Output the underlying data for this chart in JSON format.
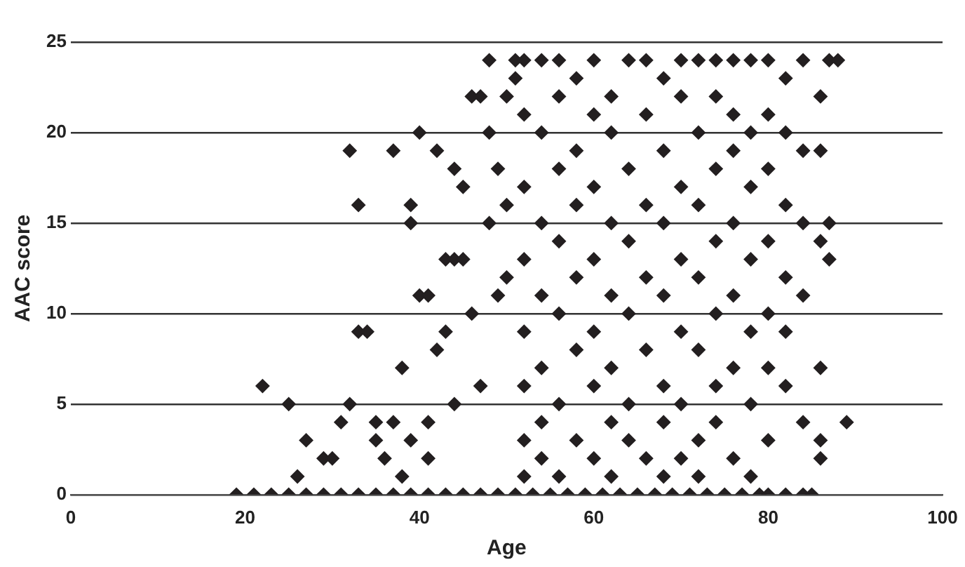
{
  "chart_data": {
    "type": "scatter",
    "xlabel": "Age",
    "ylabel": "AAC score",
    "xlim": [
      0,
      100
    ],
    "xticks": [
      0,
      20,
      40,
      60,
      80,
      100
    ],
    "ylim": [
      0,
      25
    ],
    "yticks": [
      0,
      5,
      10,
      15,
      20,
      25
    ],
    "grid": "y",
    "legend": false,
    "marker": "diamond",
    "series": [
      {
        "color": "#231f20",
        "x": [
          22,
          25,
          26,
          27,
          29,
          30,
          31,
          32,
          33,
          32,
          33,
          34,
          35,
          35,
          36,
          37,
          37,
          38,
          38,
          39,
          39,
          39,
          40,
          40,
          41,
          41,
          41,
          42,
          42,
          43,
          43,
          44,
          44,
          44,
          45,
          45,
          46,
          46,
          47,
          47,
          48,
          48,
          48,
          49,
          49,
          50,
          50,
          50,
          51,
          51,
          19,
          21,
          23,
          25,
          27,
          29,
          31,
          33,
          35,
          37,
          39,
          41,
          43,
          45,
          47,
          49,
          51,
          53,
          55,
          57,
          59,
          61,
          63,
          65,
          67,
          69,
          71,
          73,
          75,
          77,
          79,
          80,
          82,
          84,
          85,
          52,
          52,
          52,
          52,
          52,
          52,
          52,
          52,
          54,
          54,
          54,
          54,
          54,
          54,
          54,
          56,
          56,
          56,
          56,
          56,
          56,
          56,
          58,
          58,
          58,
          58,
          58,
          58,
          60,
          60,
          60,
          60,
          60,
          60,
          60,
          62,
          62,
          62,
          62,
          62,
          62,
          62,
          64,
          64,
          64,
          64,
          64,
          64,
          66,
          66,
          66,
          66,
          66,
          66,
          68,
          68,
          68,
          68,
          68,
          68,
          68,
          70,
          70,
          70,
          70,
          70,
          70,
          70,
          72,
          72,
          72,
          72,
          72,
          72,
          72,
          74,
          74,
          74,
          74,
          74,
          74,
          74,
          76,
          76,
          76,
          76,
          76,
          76,
          76,
          78,
          78,
          78,
          78,
          78,
          78,
          78,
          80,
          80,
          80,
          80,
          80,
          80,
          80,
          82,
          82,
          82,
          82,
          82,
          82,
          84,
          84,
          84,
          84,
          84,
          86,
          86,
          86,
          86,
          86,
          86,
          87,
          87,
          87,
          88,
          89
        ],
        "values": [
          6,
          5,
          1,
          3,
          2,
          2,
          4,
          19,
          16,
          5,
          9,
          9,
          3,
          4,
          2,
          19,
          4,
          1,
          7,
          15,
          16,
          3,
          20,
          11,
          11,
          2,
          4,
          19,
          8,
          13,
          9,
          18,
          13,
          5,
          17,
          13,
          10,
          22,
          22,
          6,
          15,
          24,
          20,
          18,
          11,
          16,
          12,
          22,
          23,
          24,
          0,
          0,
          0,
          0,
          0,
          0,
          0,
          0,
          0,
          0,
          0,
          0,
          0,
          0,
          0,
          0,
          0,
          0,
          0,
          0,
          0,
          0,
          0,
          0,
          0,
          0,
          0,
          0,
          0,
          0,
          0,
          0,
          0,
          0,
          0,
          24,
          21,
          17,
          13,
          9,
          6,
          3,
          1,
          24,
          20,
          15,
          11,
          7,
          4,
          2,
          24,
          22,
          18,
          14,
          10,
          5,
          1,
          23,
          19,
          16,
          12,
          8,
          3,
          24,
          21,
          17,
          13,
          9,
          6,
          2,
          22,
          20,
          15,
          11,
          7,
          4,
          1,
          24,
          18,
          14,
          10,
          5,
          3,
          24,
          21,
          16,
          12,
          8,
          2,
          23,
          19,
          15,
          11,
          6,
          4,
          1,
          24,
          22,
          17,
          13,
          9,
          5,
          2,
          24,
          20,
          16,
          12,
          8,
          3,
          1,
          24,
          22,
          18,
          14,
          10,
          6,
          4,
          24,
          21,
          19,
          15,
          11,
          7,
          2,
          24,
          20,
          17,
          13,
          9,
          5,
          1,
          24,
          21,
          18,
          14,
          10,
          7,
          3,
          23,
          20,
          16,
          12,
          9,
          6,
          24,
          19,
          15,
          11,
          4,
          22,
          19,
          14,
          7,
          3,
          2,
          24,
          15,
          13,
          24,
          4
        ]
      }
    ]
  }
}
